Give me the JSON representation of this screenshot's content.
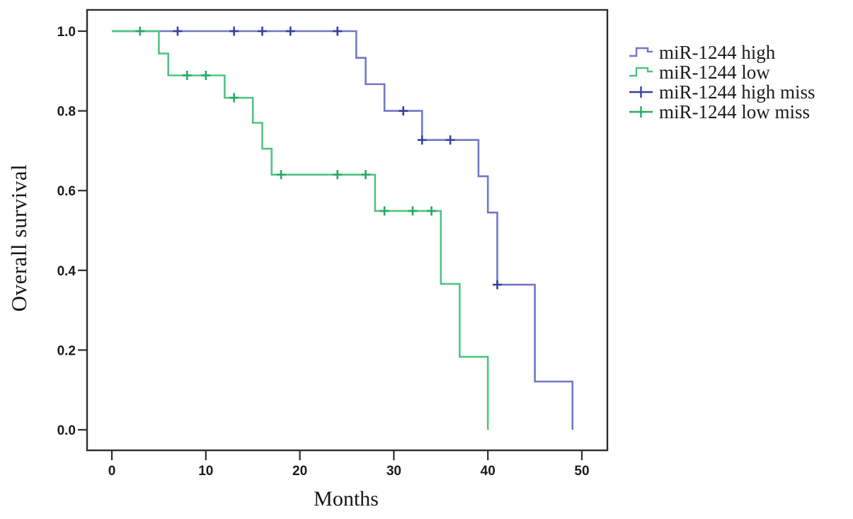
{
  "figure": {
    "background": "#ffffff",
    "frame_color": "#2d2d2d"
  },
  "chart_data": {
    "type": "line",
    "subtype": "kaplan-meier-step",
    "title": "",
    "xlabel": "Months",
    "ylabel": "Overall survival",
    "xticks": [
      0,
      10,
      20,
      30,
      40,
      50
    ],
    "ytick_labels": [
      "0.0",
      "0.2",
      "0.4",
      "0.6",
      "0.8",
      "1.0"
    ],
    "xlim": [
      -2.6,
      52.7
    ],
    "ylim": [
      -0.05,
      1.05
    ],
    "grid": false,
    "legend_position": "right-outside",
    "series": [
      {
        "name": "miR-1244 high",
        "miss_name": "miR-1244 high miss",
        "color": "#7278c4",
        "censor_color": "#35429f",
        "steps": [
          [
            0,
            1.0
          ],
          [
            26,
            0.933
          ],
          [
            27,
            0.867
          ],
          [
            29,
            0.8
          ],
          [
            33,
            0.727
          ],
          [
            39,
            0.636
          ],
          [
            40,
            0.545
          ],
          [
            41,
            0.364
          ],
          [
            45,
            0.121
          ],
          [
            49,
            0.0
          ]
        ],
        "censors": [
          [
            7,
            1.0
          ],
          [
            13,
            1.0
          ],
          [
            16,
            1.0
          ],
          [
            19,
            1.0
          ],
          [
            24,
            1.0
          ],
          [
            31,
            0.8
          ],
          [
            33,
            0.727
          ],
          [
            36,
            0.727
          ],
          [
            41,
            0.364
          ]
        ]
      },
      {
        "name": "miR-1244 low",
        "miss_name": "miR-1244 low miss",
        "color": "#52c383",
        "censor_color": "#26a95f",
        "steps": [
          [
            0,
            1.0
          ],
          [
            5,
            0.944
          ],
          [
            6,
            0.889
          ],
          [
            12,
            0.833
          ],
          [
            15,
            0.77
          ],
          [
            16,
            0.705
          ],
          [
            17,
            0.64
          ],
          [
            28,
            0.549
          ],
          [
            35,
            0.366
          ],
          [
            37,
            0.183
          ],
          [
            40,
            0.0
          ]
        ],
        "censors": [
          [
            3,
            1.0
          ],
          [
            8,
            0.889
          ],
          [
            10,
            0.889
          ],
          [
            13,
            0.833
          ],
          [
            18,
            0.64
          ],
          [
            24,
            0.64
          ],
          [
            27,
            0.64
          ],
          [
            29,
            0.549
          ],
          [
            32,
            0.549
          ],
          [
            34,
            0.549
          ]
        ]
      }
    ],
    "legend": [
      {
        "label": "miR-1244 high",
        "icon": "step",
        "series": 0
      },
      {
        "label": "miR-1244 low",
        "icon": "step",
        "series": 1
      },
      {
        "label": "miR-1244 high miss",
        "icon": "censor",
        "series": 0
      },
      {
        "label": "miR-1244 low miss",
        "icon": "censor",
        "series": 1
      }
    ]
  }
}
